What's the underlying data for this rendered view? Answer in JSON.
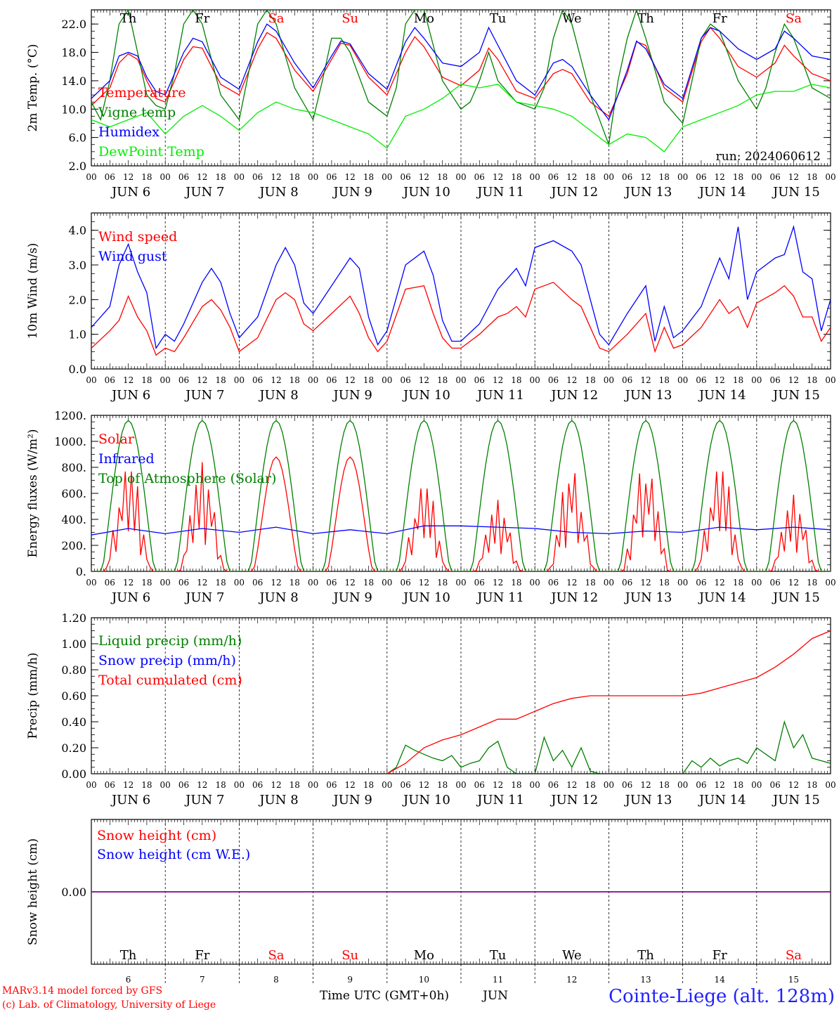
{
  "run_label": "run: 2024060612",
  "footer": {
    "model_line": "MARv3.14 model forced by GFS",
    "copyright_line": "(c) Lab. of Climatology, University of Liege",
    "xaxis_title": "Time UTC (GMT+0h)",
    "month": "JUN",
    "station": "Cointe-Liege (alt. 128m)"
  },
  "x_hour_ticks": [
    "00",
    "06",
    "12",
    "18"
  ],
  "days": [
    {
      "dow": "Th",
      "date": "6",
      "weekend": false
    },
    {
      "dow": "Fr",
      "date": "7",
      "weekend": false
    },
    {
      "dow": "Sa",
      "date": "8",
      "weekend": true
    },
    {
      "dow": "Su",
      "date": "9",
      "weekend": true
    },
    {
      "dow": "Mo",
      "date": "10",
      "weekend": false
    },
    {
      "dow": "Tu",
      "date": "11",
      "weekend": false
    },
    {
      "dow": "We",
      "date": "12",
      "weekend": false
    },
    {
      "dow": "Th",
      "date": "13",
      "weekend": false
    },
    {
      "dow": "Fr",
      "date": "14",
      "weekend": false
    },
    {
      "dow": "Sa",
      "date": "15",
      "weekend": true
    }
  ],
  "colors": {
    "red": "#ff0000",
    "green": "#008000",
    "blue": "#0000ff",
    "lightgreen": "#00ee00",
    "purple": "#800080",
    "black": "#000000"
  },
  "chart_data": [
    {
      "type": "line",
      "ylabel": "2m Temp. (°C)",
      "ylim": [
        2.0,
        24.0
      ],
      "yticks": [
        "2.0",
        "6.0",
        "10.0",
        "14.0",
        "18.0",
        "22.0"
      ],
      "x_unit": "hours since Jun 6 00 UTC",
      "show_day_labels": true,
      "series": [
        {
          "name": "Temperature",
          "color": "red",
          "x": [
            0,
            6,
            9,
            12,
            15,
            18,
            21,
            24,
            30,
            33,
            36,
            39,
            42,
            48,
            54,
            57,
            60,
            66,
            72,
            78,
            81,
            84,
            90,
            96,
            102,
            105,
            108,
            114,
            120,
            126,
            129,
            132,
            138,
            144,
            150,
            153,
            156,
            162,
            168,
            174,
            177,
            180,
            186,
            192,
            198,
            201,
            204,
            210,
            216,
            222,
            225,
            228,
            234,
            240
          ],
          "y": [
            10.5,
            13.0,
            16.5,
            17.8,
            17.0,
            14.0,
            11.5,
            11.0,
            17.0,
            18.8,
            18.6,
            16.0,
            13.5,
            12.0,
            18.5,
            20.8,
            20.0,
            15.5,
            12.5,
            17.0,
            19.3,
            19.0,
            14.5,
            12.0,
            18.0,
            20.2,
            18.8,
            14.5,
            13.3,
            15.5,
            18.6,
            17.0,
            12.5,
            11.5,
            15.0,
            15.6,
            15.0,
            11.0,
            9.0,
            15.0,
            19.5,
            19.0,
            13.0,
            11.0,
            19.5,
            21.5,
            20.0,
            16.0,
            14.5,
            16.5,
            19.0,
            17.5,
            15.0,
            14.0
          ]
        },
        {
          "name": "Vigne temp",
          "color": "green",
          "x": [
            0,
            3,
            6,
            9,
            12,
            15,
            18,
            21,
            24,
            27,
            30,
            33,
            36,
            39,
            42,
            48,
            51,
            54,
            57,
            60,
            66,
            72,
            75,
            78,
            81,
            84,
            90,
            96,
            99,
            102,
            105,
            108,
            114,
            120,
            123,
            126,
            129,
            132,
            138,
            144,
            147,
            150,
            153,
            156,
            162,
            168,
            171,
            174,
            177,
            180,
            186,
            192,
            195,
            198,
            201,
            204,
            210,
            216,
            219,
            222,
            225,
            228,
            234,
            240
          ],
          "y": [
            11.0,
            8.5,
            14.0,
            22.0,
            24.0,
            18.0,
            12.0,
            10.5,
            10.0,
            15.0,
            22.0,
            24.0,
            22.0,
            17.0,
            12.0,
            8.5,
            15.0,
            22.0,
            24.0,
            22.0,
            13.0,
            8.5,
            14.0,
            20.0,
            20.0,
            18.0,
            11.0,
            9.0,
            13.0,
            22.0,
            24.0,
            24.0,
            14.0,
            10.0,
            11.0,
            14.0,
            18.0,
            14.0,
            11.0,
            10.0,
            13.0,
            20.0,
            24.0,
            22.0,
            12.0,
            5.0,
            14.0,
            20.0,
            24.0,
            20.0,
            11.0,
            8.0,
            14.0,
            20.0,
            22.0,
            21.0,
            14.0,
            10.0,
            13.0,
            18.0,
            22.0,
            20.0,
            13.0,
            11.5
          ]
        },
        {
          "name": "Humidex",
          "color": "blue",
          "x": [
            0,
            6,
            9,
            12,
            15,
            18,
            21,
            24,
            30,
            33,
            36,
            39,
            42,
            48,
            54,
            57,
            60,
            66,
            72,
            78,
            81,
            84,
            90,
            96,
            102,
            105,
            108,
            114,
            120,
            126,
            129,
            132,
            138,
            144,
            150,
            153,
            156,
            162,
            168,
            174,
            177,
            180,
            186,
            192,
            198,
            201,
            204,
            210,
            216,
            222,
            225,
            228,
            234,
            240
          ],
          "y": [
            11.5,
            14.0,
            17.5,
            18.0,
            17.5,
            14.5,
            12.5,
            12.0,
            18.0,
            20.0,
            19.5,
            17.0,
            14.5,
            12.8,
            19.5,
            22.0,
            21.0,
            16.5,
            13.0,
            17.5,
            19.6,
            19.2,
            15.0,
            12.8,
            19.5,
            21.5,
            20.0,
            16.5,
            16.0,
            18.0,
            21.5,
            19.0,
            14.0,
            12.0,
            16.5,
            17.0,
            16.0,
            12.0,
            8.5,
            15.5,
            19.6,
            18.5,
            13.5,
            11.5,
            20.0,
            21.5,
            21.0,
            18.5,
            17.0,
            18.5,
            21.0,
            20.0,
            17.5,
            17.0
          ]
        },
        {
          "name": "DewPoint Temp",
          "color": "lightgreen",
          "x": [
            0,
            6,
            12,
            18,
            24,
            30,
            36,
            42,
            48,
            54,
            60,
            66,
            72,
            78,
            84,
            90,
            96,
            102,
            108,
            114,
            120,
            126,
            132,
            138,
            144,
            150,
            156,
            162,
            168,
            174,
            180,
            186,
            192,
            198,
            204,
            210,
            216,
            222,
            228,
            234,
            240
          ],
          "y": [
            8.5,
            7.5,
            8.5,
            9.5,
            6.5,
            9.0,
            10.5,
            9.0,
            7.0,
            9.5,
            11.0,
            10.0,
            9.5,
            8.5,
            7.5,
            6.5,
            4.5,
            9.0,
            10.0,
            11.5,
            13.5,
            13.0,
            13.5,
            11.0,
            10.5,
            10.0,
            9.0,
            7.0,
            5.0,
            6.5,
            6.0,
            4.0,
            7.5,
            8.5,
            9.5,
            10.5,
            12.0,
            12.5,
            12.5,
            13.5,
            13.0
          ]
        }
      ]
    },
    {
      "type": "line",
      "ylabel": "10m Wind (m/s)",
      "ylim": [
        0.0,
        4.5
      ],
      "yticks": [
        "0.0",
        "1.0",
        "2.0",
        "3.0",
        "4.0"
      ],
      "show_day_labels": true,
      "series": [
        {
          "name": "Wind speed",
          "color": "red",
          "x": [
            0,
            6,
            9,
            12,
            15,
            18,
            21,
            24,
            27,
            30,
            36,
            39,
            42,
            45,
            48,
            54,
            60,
            63,
            66,
            69,
            72,
            78,
            84,
            87,
            90,
            93,
            96,
            102,
            108,
            111,
            114,
            117,
            120,
            126,
            132,
            135,
            138,
            141,
            144,
            150,
            156,
            159,
            162,
            165,
            168,
            174,
            180,
            183,
            186,
            189,
            192,
            198,
            204,
            207,
            210,
            213,
            216,
            222,
            225,
            228,
            231,
            234,
            237,
            240
          ],
          "y": [
            0.6,
            1.1,
            1.4,
            2.1,
            1.5,
            1.1,
            0.4,
            0.6,
            0.5,
            0.9,
            1.8,
            2.0,
            1.7,
            1.2,
            0.5,
            0.9,
            2.0,
            2.2,
            2.0,
            1.3,
            1.1,
            1.6,
            2.1,
            1.6,
            0.9,
            0.5,
            0.8,
            2.3,
            2.4,
            1.6,
            0.9,
            0.6,
            0.6,
            1.0,
            1.5,
            1.6,
            1.8,
            1.5,
            2.3,
            2.5,
            2.0,
            1.8,
            1.2,
            0.6,
            0.5,
            1.0,
            1.6,
            0.5,
            1.2,
            0.6,
            0.7,
            1.2,
            2.0,
            1.6,
            1.8,
            1.2,
            1.9,
            2.2,
            2.4,
            2.1,
            1.5,
            1.5,
            0.8,
            1.2
          ]
        },
        {
          "name": "Wind gust",
          "color": "blue",
          "x": [
            0,
            6,
            9,
            12,
            15,
            18,
            21,
            24,
            27,
            30,
            36,
            39,
            42,
            45,
            48,
            54,
            60,
            63,
            66,
            69,
            72,
            78,
            84,
            87,
            90,
            93,
            96,
            102,
            108,
            111,
            114,
            117,
            120,
            126,
            132,
            135,
            138,
            141,
            144,
            150,
            156,
            159,
            162,
            165,
            168,
            174,
            180,
            183,
            186,
            189,
            192,
            198,
            204,
            207,
            210,
            213,
            216,
            222,
            225,
            228,
            231,
            234,
            237,
            240
          ],
          "y": [
            1.2,
            1.8,
            3.0,
            3.6,
            2.8,
            2.2,
            0.6,
            1.0,
            0.8,
            1.3,
            2.5,
            2.9,
            2.5,
            1.6,
            0.9,
            1.5,
            3.0,
            3.5,
            3.0,
            1.9,
            1.6,
            2.4,
            3.2,
            2.9,
            1.5,
            0.7,
            1.1,
            3.0,
            3.4,
            2.7,
            1.4,
            0.8,
            0.8,
            1.3,
            2.3,
            2.6,
            2.9,
            2.4,
            3.5,
            3.7,
            3.4,
            3.0,
            2.0,
            1.0,
            0.7,
            1.6,
            2.4,
            0.8,
            1.8,
            0.9,
            1.1,
            1.8,
            3.2,
            2.6,
            4.1,
            2.0,
            2.8,
            3.2,
            3.3,
            4.1,
            2.8,
            2.6,
            1.1,
            2.0
          ]
        }
      ]
    },
    {
      "type": "line",
      "ylabel": "Energy fluxes (W/m²)",
      "ylim": [
        0,
        1200
      ],
      "yticks": [
        "0.",
        "200.",
        "400.",
        "600.",
        "800.",
        "1000.",
        "1200."
      ],
      "show_day_labels": true,
      "series": [
        {
          "name": "Solar",
          "color": "red",
          "daily_peaks": [
            880,
            840,
            880,
            880,
            730,
            550,
            820,
            900,
            880,
            590
          ]
        },
        {
          "name": "Infrared",
          "color": "blue",
          "x": [
            0,
            12,
            24,
            36,
            48,
            60,
            72,
            84,
            96,
            108,
            120,
            132,
            144,
            156,
            168,
            180,
            192,
            204,
            216,
            228,
            240
          ],
          "y": [
            280,
            330,
            290,
            330,
            300,
            340,
            290,
            320,
            290,
            350,
            350,
            340,
            330,
            300,
            290,
            310,
            300,
            340,
            320,
            340,
            320
          ]
        },
        {
          "name": "Top of Atmosphere (Solar)",
          "color": "green",
          "daily_peak": 1160
        }
      ]
    },
    {
      "type": "line",
      "ylabel": "Precip (mm/h)",
      "ylim": [
        0.0,
        1.2
      ],
      "yticks": [
        "0.00",
        "0.20",
        "0.40",
        "0.60",
        "0.80",
        "1.00",
        "1.20"
      ],
      "show_day_labels": true,
      "series": [
        {
          "name": "Liquid precip (mm/h)",
          "color": "green",
          "x": [
            0,
            96,
            99,
            102,
            105,
            108,
            111,
            114,
            117,
            120,
            123,
            126,
            129,
            132,
            135,
            138,
            141,
            144,
            147,
            150,
            153,
            156,
            159,
            162,
            165,
            168,
            192,
            195,
            198,
            201,
            204,
            207,
            210,
            213,
            216,
            219,
            222,
            225,
            228,
            231,
            234,
            237,
            240
          ],
          "y": [
            0,
            0,
            0.05,
            0.22,
            0.18,
            0.15,
            0.12,
            0.1,
            0.14,
            0.05,
            0.08,
            0.1,
            0.2,
            0.25,
            0.05,
            0,
            0,
            0,
            0.28,
            0.1,
            0.18,
            0.05,
            0.2,
            0.02,
            0,
            0,
            0,
            0.1,
            0.05,
            0.12,
            0.06,
            0.1,
            0.12,
            0.08,
            0.2,
            0.15,
            0.1,
            0.4,
            0.2,
            0.3,
            0.12,
            0.1,
            0.08
          ]
        },
        {
          "name": "Snow precip (mm/h)",
          "color": "blue",
          "x": [
            0,
            240
          ],
          "y": [
            0,
            0
          ]
        },
        {
          "name": "Total cumulated (cm)",
          "color": "red",
          "x": [
            0,
            96,
            102,
            108,
            114,
            120,
            126,
            132,
            138,
            144,
            150,
            156,
            162,
            168,
            192,
            198,
            204,
            210,
            216,
            222,
            228,
            234,
            240
          ],
          "y": [
            0,
            0,
            0.08,
            0.2,
            0.26,
            0.3,
            0.36,
            0.42,
            0.42,
            0.48,
            0.54,
            0.58,
            0.6,
            0.6,
            0.6,
            0.62,
            0.66,
            0.7,
            0.74,
            0.82,
            0.92,
            1.04,
            1.1
          ]
        }
      ]
    },
    {
      "type": "line",
      "ylabel": "Snow height (cm)",
      "ylim": [
        -1,
        1
      ],
      "yticks": [
        "0.00"
      ],
      "show_day_labels": false,
      "series": [
        {
          "name": "Snow height (cm)",
          "color": "red",
          "x": [
            0,
            240
          ],
          "y": [
            0,
            0
          ]
        },
        {
          "name": "Snow height (cm W.E.)",
          "color": "blue",
          "x": [
            0,
            240
          ],
          "y": [
            0,
            0
          ]
        }
      ]
    }
  ]
}
